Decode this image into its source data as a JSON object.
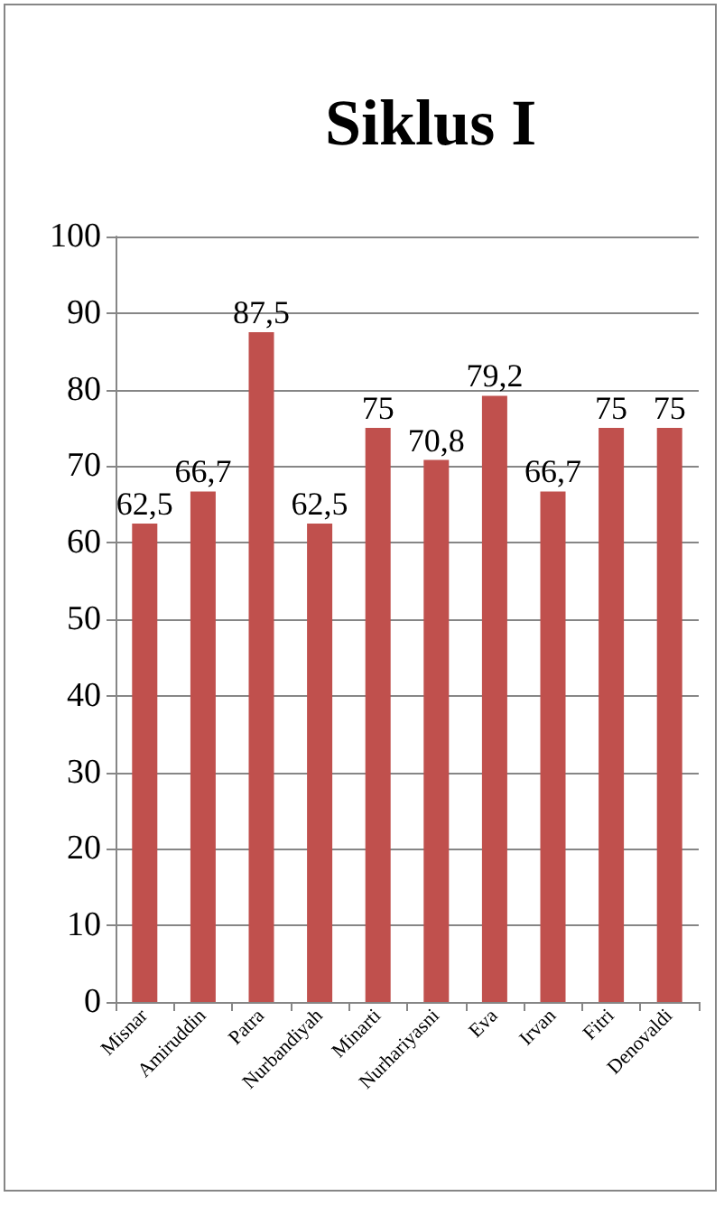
{
  "chart_data": {
    "type": "bar",
    "title": "Siklus I",
    "categories": [
      "Misnar",
      "Amiruddin",
      "Patra",
      "Nurbandiyah",
      "Minarti",
      "Nurhariyasni",
      "Eva",
      "Irvan",
      "Fitri",
      "Denovaldi"
    ],
    "values": [
      62.5,
      66.7,
      87.5,
      62.5,
      75,
      70.8,
      79.2,
      66.7,
      75,
      75
    ],
    "value_labels": [
      "62,5",
      "66,7",
      "87,5",
      "62,5",
      "75",
      "70,8",
      "79,2",
      "66,7",
      "75",
      "75"
    ],
    "color": "#c0504d",
    "ylim": [
      0,
      100
    ],
    "yticks": [
      0,
      10,
      20,
      30,
      40,
      50,
      60,
      70,
      80,
      90,
      100
    ],
    "grid": "y"
  }
}
